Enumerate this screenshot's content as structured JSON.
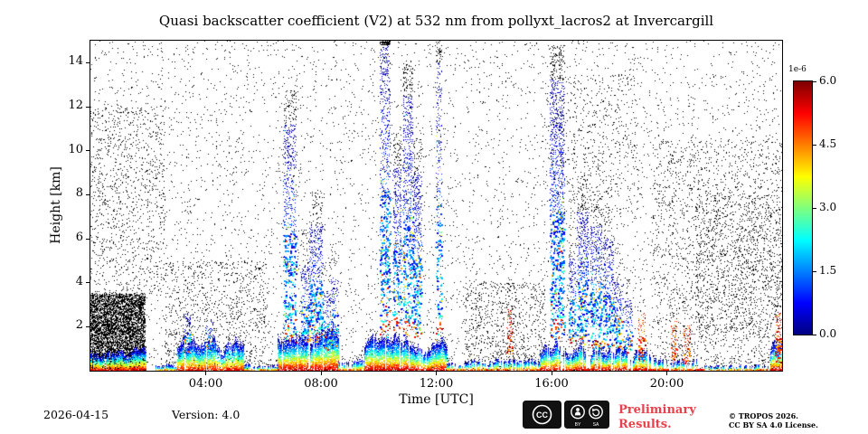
{
  "title": "Quasi backscatter coefficient (V2) at 532 nm from pollyxt_lacros2 at Invercargill",
  "footer": {
    "date": "2026-04-15",
    "version": "Version: 4.0",
    "preliminary_line1": "Preliminary",
    "preliminary_line2": "Results.",
    "preliminary_color": "#e8414b",
    "copyright": "© TROPOS 2026.",
    "license": "CC BY SA 4.0 License."
  },
  "chart_data": {
    "type": "heatmap",
    "title": "Quasi backscatter coefficient (V2) at 532 nm from pollyxt_lacros2 at Invercargill",
    "xlabel": "Time [UTC]",
    "ylabel": "Height [km]",
    "xlim_hours": [
      0,
      24
    ],
    "ylim_km": [
      0,
      15
    ],
    "grid": false,
    "background": "#ffffff",
    "xticks": [
      {
        "hour": 4,
        "label": "04:00"
      },
      {
        "hour": 8,
        "label": "08:00"
      },
      {
        "hour": 12,
        "label": "12:00"
      },
      {
        "hour": 16,
        "label": "16:00"
      },
      {
        "hour": 20,
        "label": "20:00"
      }
    ],
    "yticks": [
      {
        "km": 2,
        "label": "2"
      },
      {
        "km": 4,
        "label": "4"
      },
      {
        "km": 6,
        "label": "6"
      },
      {
        "km": 8,
        "label": "8"
      },
      {
        "km": 10,
        "label": "10"
      },
      {
        "km": 12,
        "label": "12"
      },
      {
        "km": 14,
        "label": "14"
      }
    ],
    "colorbar": {
      "scale_label": "1e-6",
      "colormap": "jet",
      "vmin": 0.0,
      "vmax": 6.0,
      "position": "right",
      "ticks": [
        {
          "value": 0.0,
          "label": "0.0"
        },
        {
          "value": 1.5,
          "label": "1.5"
        },
        {
          "value": 3.0,
          "label": "3.0"
        },
        {
          "value": 4.5,
          "label": "4.5"
        },
        {
          "value": 6.0,
          "label": "6.0"
        }
      ]
    },
    "summary": "Time-height lidar quicklook: white background with scattered black noise pixels, a boundary-layer aerosol band (red/orange at surface grading to green/cyan aloft, mostly below 2.5 km), and intermittent vertical cloud streaks of cyan/blue speckle reaching up to 15 km near 07:00, 08:00, 10:00-11:30, 12:05, 16:00-18:30 and warm red columns near 14:30, 19:00, 20:00-21:00, 23:50.",
    "noise_regions_format": "[t0_h, t1_h, z0_km, z1_km, count]",
    "noise_regions": [
      [
        0,
        24,
        0,
        15,
        5200
      ],
      [
        0,
        1.9,
        0,
        3.5,
        5200
      ],
      [
        0,
        2.6,
        3.5,
        12,
        900
      ],
      [
        2.6,
        6.2,
        0,
        5,
        900
      ],
      [
        13,
        15.8,
        0,
        4,
        700
      ],
      [
        16,
        19,
        7,
        13.5,
        500
      ],
      [
        19.5,
        24,
        0,
        10.5,
        1700
      ],
      [
        21,
        24,
        1.5,
        8,
        800
      ]
    ],
    "surface_layers_format": "[t0_h, t1_h, ztop_km, gap_fraction, value_max_1e-6]",
    "surface_layers": [
      [
        0,
        1.9,
        1.3,
        0.05,
        5.8
      ],
      [
        2.25,
        3.0,
        0.45,
        0.3,
        5.2
      ],
      [
        3.0,
        5.3,
        1.9,
        0.15,
        5.5
      ],
      [
        5.3,
        6.5,
        0.5,
        0.45,
        5.2
      ],
      [
        6.5,
        8.6,
        2.4,
        0.1,
        5.8
      ],
      [
        8.6,
        9.5,
        0.8,
        0.4,
        5.3
      ],
      [
        9.5,
        12.35,
        2.0,
        0.12,
        5.8
      ],
      [
        12.35,
        13.2,
        0.6,
        0.35,
        5.4
      ],
      [
        13.2,
        15.6,
        0.9,
        0.45,
        5.5
      ],
      [
        15.6,
        19.4,
        1.6,
        0.2,
        5.8
      ],
      [
        19.4,
        21.3,
        1.1,
        0.55,
        5.6
      ],
      [
        21.3,
        23.6,
        0.45,
        0.4,
        5.3
      ],
      [
        23.6,
        24,
        1.8,
        0.1,
        5.7
      ]
    ],
    "clouds_format": "[t0_h, t1_h, zbase_km, ztop_km, density, warmth]",
    "clouds": [
      [
        3.25,
        3.5,
        0.8,
        2.6,
        1.2,
        0
      ],
      [
        4.0,
        4.25,
        0.9,
        2.3,
        1.0,
        0
      ],
      [
        6.7,
        7.15,
        1.3,
        11.2,
        1.1,
        0
      ],
      [
        7.3,
        7.6,
        1.2,
        4.8,
        1.4,
        0
      ],
      [
        7.6,
        8.05,
        1.3,
        6.6,
        1.6,
        0
      ],
      [
        8.05,
        8.35,
        0.9,
        3.6,
        1.2,
        0
      ],
      [
        8.35,
        8.6,
        0.9,
        4.2,
        1.0,
        0
      ],
      [
        10.05,
        10.4,
        1.5,
        14.8,
        1.2,
        0
      ],
      [
        10.5,
        10.8,
        1.8,
        9.2,
        1.4,
        0
      ],
      [
        10.85,
        11.2,
        1.5,
        12.5,
        1.3,
        0
      ],
      [
        11.2,
        11.5,
        1.5,
        9.0,
        1.5,
        0
      ],
      [
        12.0,
        12.2,
        1.2,
        14.0,
        0.9,
        0
      ],
      [
        14.45,
        14.65,
        0.4,
        2.8,
        1.2,
        0.9
      ],
      [
        15.95,
        16.45,
        1.4,
        13.2,
        1.4,
        0
      ],
      [
        16.6,
        16.85,
        1.2,
        5.2,
        1.3,
        0
      ],
      [
        16.9,
        17.3,
        1.2,
        7.2,
        1.6,
        0
      ],
      [
        17.35,
        17.75,
        1.0,
        6.6,
        1.5,
        0
      ],
      [
        17.8,
        18.15,
        1.0,
        6.0,
        1.4,
        0
      ],
      [
        18.15,
        18.5,
        0.9,
        4.0,
        1.3,
        0
      ],
      [
        18.55,
        18.8,
        0.8,
        3.2,
        1.2,
        0
      ],
      [
        19.0,
        19.25,
        0.4,
        2.6,
        1.2,
        0.85
      ],
      [
        20.15,
        20.35,
        0.3,
        2.3,
        1.3,
        0.9
      ],
      [
        20.55,
        20.8,
        0.3,
        2.1,
        1.2,
        0.9
      ],
      [
        23.75,
        23.98,
        0.3,
        2.7,
        1.5,
        0.95
      ]
    ]
  }
}
